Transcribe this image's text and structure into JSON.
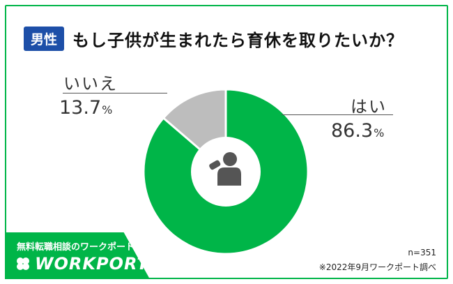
{
  "header": {
    "badge": "男性",
    "question": "もし子供が生まれたら育休を取りたいか？"
  },
  "chart_data": {
    "type": "pie",
    "donut": true,
    "categories": [
      "はい",
      "いいえ"
    ],
    "values": [
      86.3,
      13.7
    ],
    "value_labels": [
      "86.3",
      "13.7"
    ],
    "unit": "%",
    "colors": [
      "#00b548",
      "#bdbdbd"
    ],
    "center_icon": "parent-feeding-baby-icon"
  },
  "footer": {
    "brand_sub": "無料転職相談のワークポート",
    "brand_name": "WORKPORT",
    "sample_size": "n=351",
    "source": "※2022年9月ワークポート調べ"
  }
}
